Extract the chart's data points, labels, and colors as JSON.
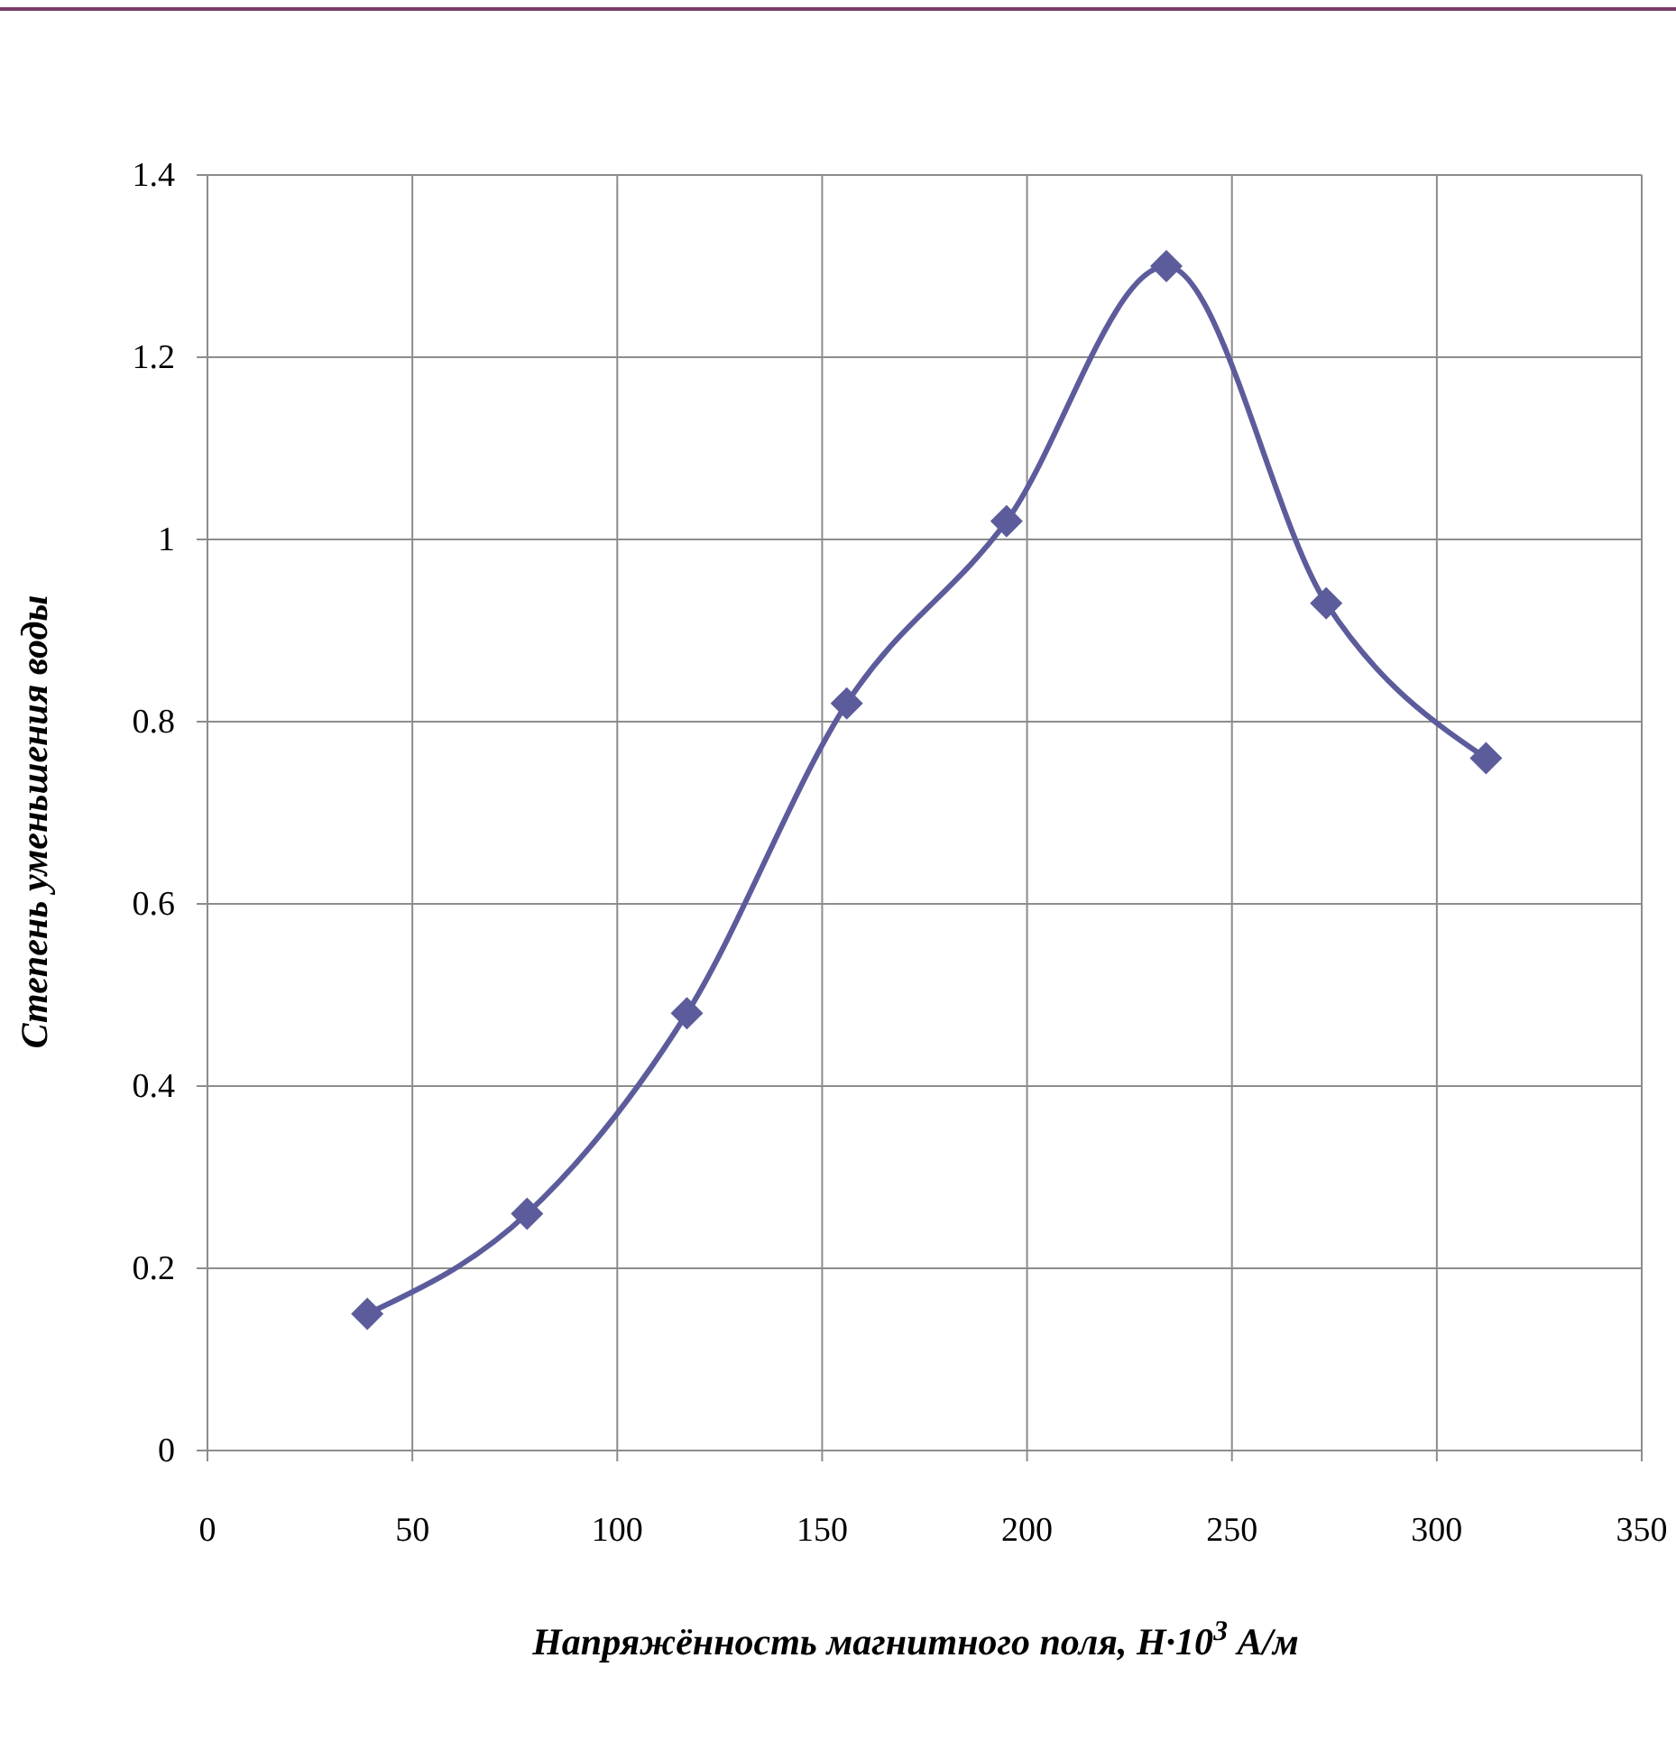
{
  "chart_data": {
    "type": "line",
    "xlabel": "Напряжённость магнитного поля, H·10$^{3}$   А/м",
    "ylabel": "Степень уменьшения воды",
    "x": [
      39,
      78,
      117,
      156,
      195,
      234,
      273,
      312
    ],
    "series": [
      {
        "color": "#5c5c9c",
        "values": [
          0.15,
          0.26,
          0.48,
          0.82,
          1.02,
          1.3,
          0.93,
          0.76
        ]
      }
    ],
    "xlim": [
      0,
      350
    ],
    "xticks": [
      0,
      50,
      100,
      150,
      200,
      250,
      300,
      350
    ],
    "ylim": [
      0,
      1.4
    ],
    "yticks": [
      0,
      {
        "value": 0.2,
        "label": "0.2"
      },
      {
        "value": 0.4,
        "label": "0.4"
      },
      {
        "value": 0.6,
        "label": "0.6"
      },
      {
        "value": 0.8,
        "label": "0.8"
      },
      1,
      {
        "value": 1.2,
        "label": "1.2"
      },
      {
        "value": 1.4,
        "label": "1.4"
      }
    ],
    "grid": true,
    "marker": "diamond",
    "line_style": "solid"
  }
}
